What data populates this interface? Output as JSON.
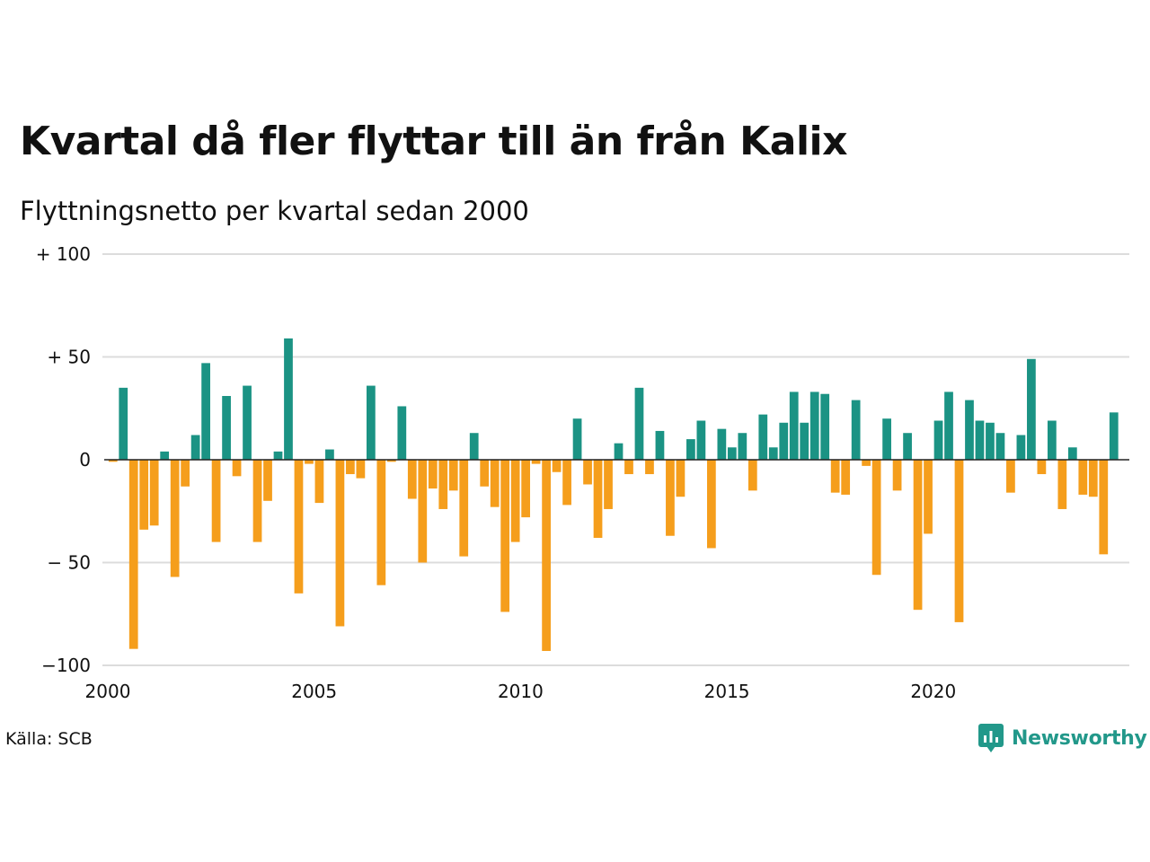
{
  "title": "Kvartal då fler flyttar till än från Kalix",
  "subtitle": "Flyttningsnetto per kvartal sedan 2000",
  "source": "Källa: SCB",
  "brand": {
    "name": "Newsworthy",
    "icon": "newsworthy-logo-icon"
  },
  "colors": {
    "positive": "#1b9384",
    "negative": "#f59e1c",
    "grid": "#dcdcdc",
    "zero": "#222222"
  },
  "chart_data": {
    "type": "bar",
    "title": "Kvartal då fler flyttar till än från Kalix",
    "subtitle": "Flyttningsnetto per kvartal sedan 2000",
    "xlabel": "",
    "ylabel": "",
    "ylim": [
      -100,
      100
    ],
    "xlim": [
      2000,
      2024.75
    ],
    "grid": true,
    "y_ticks": [
      {
        "value": 100,
        "label": "+ 100"
      },
      {
        "value": 50,
        "label": "+  50"
      },
      {
        "value": 0,
        "label": "0"
      },
      {
        "value": -50,
        "label": "− 50"
      },
      {
        "value": -100,
        "label": "−100"
      }
    ],
    "x_ticks": [
      {
        "value": 2000,
        "label": "2000"
      },
      {
        "value": 2005,
        "label": "2005"
      },
      {
        "value": 2010,
        "label": "2010"
      },
      {
        "value": 2015,
        "label": "2015"
      },
      {
        "value": 2020,
        "label": "2020"
      }
    ],
    "start_year": 2000,
    "values": [
      -1,
      35,
      -92,
      -34,
      -32,
      4,
      -57,
      -13,
      12,
      47,
      -40,
      31,
      -8,
      36,
      -40,
      -20,
      4,
      59,
      -65,
      -2,
      -21,
      5,
      -81,
      -7,
      -9,
      36,
      -61,
      -1,
      26,
      -19,
      -50,
      -14,
      -24,
      -15,
      -47,
      13,
      -13,
      -23,
      -74,
      -40,
      -28,
      -2,
      -93,
      -6,
      -22,
      20,
      -12,
      -38,
      -24,
      8,
      -7,
      35,
      -7,
      14,
      -37,
      -18,
      10,
      19,
      -43,
      15,
      6,
      13,
      -15,
      22,
      6,
      18,
      33,
      18,
      33,
      32,
      -16,
      -17,
      29,
      -3,
      -56,
      20,
      -15,
      13,
      -73,
      -36,
      19,
      33,
      -79,
      29,
      19,
      18,
      13,
      -16,
      12,
      49,
      -7,
      19,
      -24,
      6,
      -17,
      -18,
      -46,
      23
    ]
  }
}
